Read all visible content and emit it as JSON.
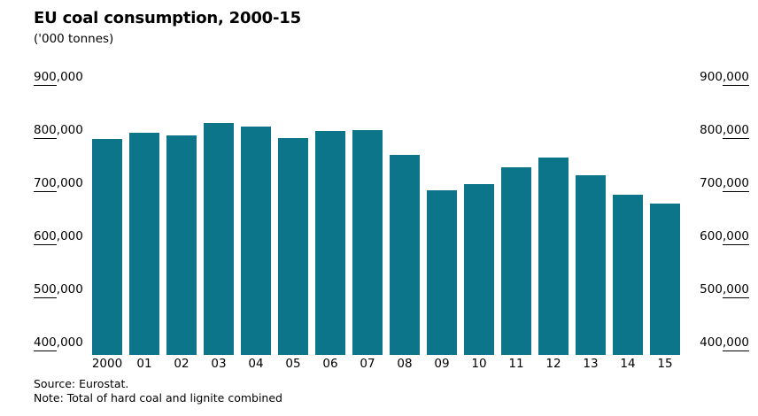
{
  "header": {
    "title": "EU coal consumption, 2000-15",
    "subtitle": "('000 tonnes)"
  },
  "footer": {
    "source": "Source: Eurostat.",
    "note": "Note: Total of hard coal and lignite combined"
  },
  "colors": {
    "bar": "#0c7589",
    "text": "#000000",
    "background": "#ffffff"
  },
  "chart_data": {
    "type": "bar",
    "title": "EU coal consumption, 2000-15",
    "unit_label": "('000 tonnes)",
    "categories": [
      "2000",
      "01",
      "02",
      "03",
      "04",
      "05",
      "06",
      "07",
      "08",
      "09",
      "10",
      "11",
      "12",
      "13",
      "14",
      "15"
    ],
    "values": [
      792000,
      804000,
      799000,
      821000,
      815000,
      794000,
      806000,
      808000,
      761000,
      695000,
      707000,
      739000,
      756000,
      723000,
      687000,
      670000
    ],
    "xlabel": "",
    "ylabel": "",
    "ylim": [
      400000,
      900000
    ],
    "yticks": [
      900000,
      800000,
      700000,
      600000,
      500000,
      400000
    ],
    "ytick_labels": [
      "900,000",
      "800,000",
      "700,000",
      "600,000",
      "500,000",
      "400,000"
    ],
    "grid": false,
    "legend_position": "none",
    "axis_label_sides": [
      "left",
      "right"
    ]
  }
}
